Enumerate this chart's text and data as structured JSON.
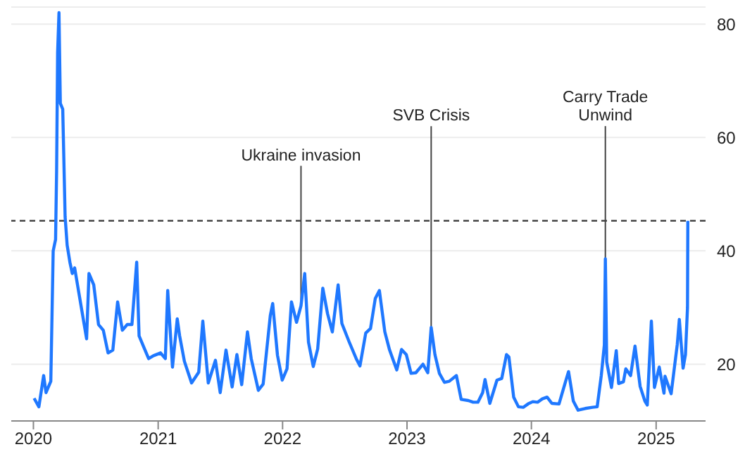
{
  "chart_data": {
    "type": "line",
    "x": [
      "2020-01-03",
      "2020-01-17",
      "2020-01-31",
      "2020-02-07",
      "2020-02-21",
      "2020-02-28",
      "2020-03-06",
      "2020-03-09",
      "2020-03-12",
      "2020-03-16",
      "2020-03-20",
      "2020-03-27",
      "2020-04-03",
      "2020-04-09",
      "2020-04-17",
      "2020-04-24",
      "2020-05-01",
      "2020-05-15",
      "2020-05-29",
      "2020-06-05",
      "2020-06-12",
      "2020-06-19",
      "2020-06-26",
      "2020-07-10",
      "2020-07-24",
      "2020-08-07",
      "2020-08-21",
      "2020-09-04",
      "2020-09-18",
      "2020-10-02",
      "2020-10-16",
      "2020-10-30",
      "2020-11-06",
      "2020-11-20",
      "2020-12-04",
      "2020-12-18",
      "2021-01-08",
      "2021-01-22",
      "2021-01-29",
      "2021-02-12",
      "2021-02-26",
      "2021-03-05",
      "2021-03-19",
      "2021-04-09",
      "2021-04-30",
      "2021-05-12",
      "2021-05-28",
      "2021-06-18",
      "2021-07-02",
      "2021-07-19",
      "2021-08-06",
      "2021-08-20",
      "2021-09-03",
      "2021-09-20",
      "2021-10-01",
      "2021-10-22",
      "2021-11-05",
      "2021-11-26",
      "2021-12-03",
      "2021-12-17",
      "2021-12-31",
      "2022-01-14",
      "2022-01-27",
      "2022-02-11",
      "2022-02-24",
      "2022-03-07",
      "2022-03-18",
      "2022-04-01",
      "2022-04-14",
      "2022-04-29",
      "2022-05-13",
      "2022-05-27",
      "2022-06-13",
      "2022-06-24",
      "2022-07-15",
      "2022-08-05",
      "2022-08-16",
      "2022-09-02",
      "2022-09-16",
      "2022-09-30",
      "2022-10-12",
      "2022-10-28",
      "2022-11-11",
      "2022-12-02",
      "2022-12-16",
      "2022-12-30",
      "2023-01-13",
      "2023-01-27",
      "2023-02-17",
      "2023-03-03",
      "2023-03-13",
      "2023-03-24",
      "2023-04-06",
      "2023-04-21",
      "2023-05-05",
      "2023-05-26",
      "2023-06-09",
      "2023-06-30",
      "2023-07-14",
      "2023-07-28",
      "2023-08-11",
      "2023-08-18",
      "2023-09-01",
      "2023-09-22",
      "2023-10-06",
      "2023-10-20",
      "2023-10-27",
      "2023-11-10",
      "2023-11-24",
      "2023-12-08",
      "2023-12-22",
      "2024-01-05",
      "2024-01-19",
      "2024-02-02",
      "2024-02-16",
      "2024-03-01",
      "2024-03-22",
      "2024-04-12",
      "2024-04-19",
      "2024-05-03",
      "2024-05-17",
      "2024-06-07",
      "2024-06-28",
      "2024-07-12",
      "2024-07-24",
      "2024-08-02",
      "2024-08-05",
      "2024-08-09",
      "2024-08-23",
      "2024-09-06",
      "2024-09-13",
      "2024-09-27",
      "2024-10-04",
      "2024-10-18",
      "2024-10-31",
      "2024-11-15",
      "2024-11-29",
      "2024-12-06",
      "2024-12-18",
      "2024-12-27",
      "2025-01-10",
      "2025-01-24",
      "2025-01-27",
      "2025-02-14",
      "2025-03-04",
      "2025-03-10",
      "2025-03-21",
      "2025-03-28",
      "2025-04-03",
      "2025-04-04"
    ],
    "series": [
      {
        "color": "#1f78ff",
        "values": [
          14,
          12.5,
          18,
          15,
          17,
          40,
          42,
          54,
          75,
          82,
          66,
          65,
          46,
          41,
          38,
          36,
          37,
          32,
          27,
          24.5,
          36,
          35,
          34,
          27,
          26,
          22,
          22.5,
          31,
          26,
          27,
          27,
          38,
          25,
          23,
          21,
          21.5,
          22,
          21,
          33,
          19.5,
          28,
          25,
          20.5,
          16.7,
          18.6,
          27.6,
          16.7,
          20.7,
          15,
          22.5,
          16,
          21.7,
          16.4,
          25.7,
          21,
          15.4,
          16.5,
          28.6,
          30.7,
          21.6,
          17.2,
          19.2,
          31,
          27.4,
          30.3,
          36,
          23.9,
          19.6,
          22.7,
          33.4,
          28.9,
          25.7,
          34,
          27.2,
          24,
          21,
          19.7,
          25.5,
          26.3,
          31.6,
          33,
          25.7,
          22.5,
          19,
          22.6,
          21.7,
          18.4,
          18.5,
          20,
          18.5,
          26.5,
          21.7,
          18.4,
          16.8,
          17,
          18,
          13.8,
          13.6,
          13.3,
          13.3,
          15,
          17.3,
          13.1,
          17.2,
          17.5,
          21.7,
          21.3,
          14.2,
          12.5,
          12.4,
          13,
          13.4,
          13.3,
          13.9,
          14.2,
          13.1,
          13,
          17.3,
          18.7,
          13.5,
          11.9,
          12.2,
          12.4,
          12.5,
          18,
          23.4,
          38.6,
          20.4,
          15.9,
          22.4,
          16.6,
          16.9,
          19.2,
          18,
          23.2,
          16.1,
          13.5,
          12.8,
          27.6,
          15.9,
          19.5,
          14.9,
          17.9,
          14.8,
          23.5,
          27.9,
          19.3,
          21.7,
          30,
          45.3
        ]
      }
    ],
    "xlim": [
      "2019-10-28",
      "2025-05-26"
    ],
    "xticks": [
      "2020",
      "2021",
      "2022",
      "2023",
      "2024",
      "2025"
    ],
    "ylim": [
      10,
      83
    ],
    "yticks": [
      20,
      40,
      60,
      80
    ],
    "grid": "y",
    "line_style": "solid",
    "ref_lines": [
      {
        "axis": "y",
        "value": 45.3,
        "color": "#333333",
        "line_style": "dashed"
      }
    ],
    "annotations": [
      {
        "text": "Ukraine invasion",
        "x": "2022-02-24",
        "y": 30.3
      },
      {
        "text": "SVB Crisis",
        "x": "2023-03-13",
        "y": 26.5
      },
      {
        "text": "Carry Trade Unwind",
        "x": "2024-08-05",
        "y": 38.6
      }
    ]
  }
}
